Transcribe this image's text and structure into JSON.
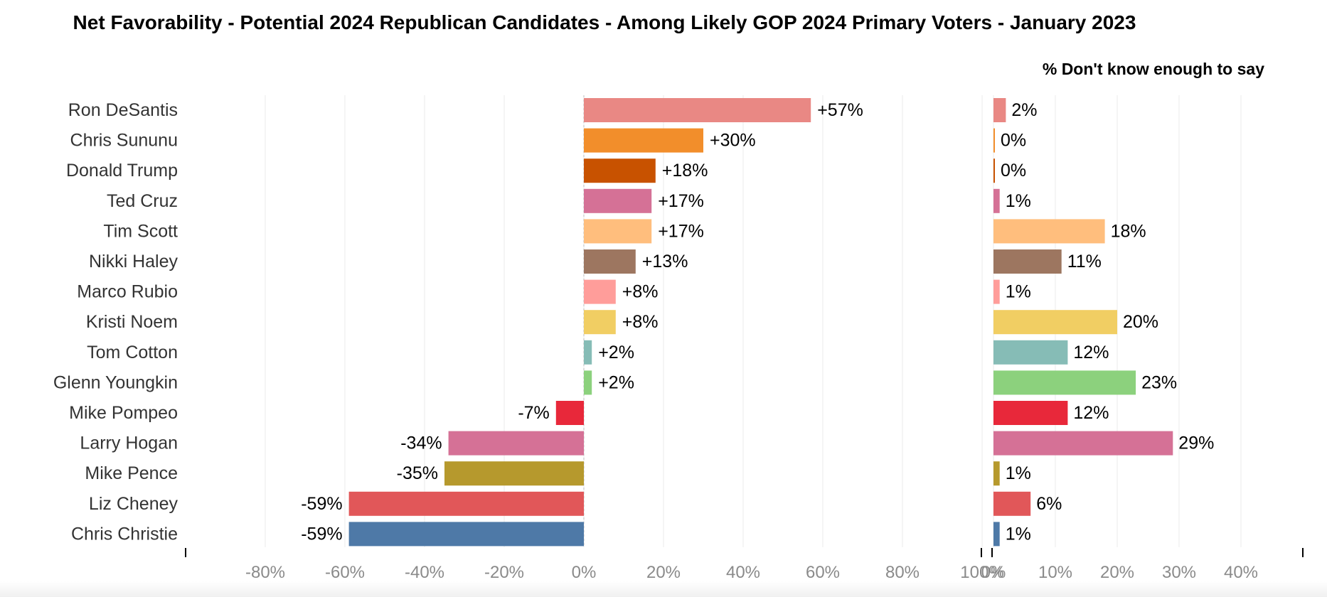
{
  "title": "Net Favorability - Potential 2024 Republican Candidates - Among Likely GOP 2024 Primary Voters - January 2023",
  "subtitle": "% Don't know enough to say",
  "chart_data": [
    {
      "type": "bar",
      "orientation": "horizontal",
      "title": "",
      "xlabel": "",
      "ylabel": "",
      "xlim": [
        -100,
        100
      ],
      "x_ticks": [
        "-80%",
        "-60%",
        "-40%",
        "-20%",
        "0%",
        "20%",
        "40%",
        "60%",
        "80%",
        "100%"
      ],
      "x_tick_values": [
        -80,
        -60,
        -40,
        -20,
        0,
        20,
        40,
        60,
        80,
        100
      ],
      "grid": true,
      "categories": [
        "Ron DeSantis",
        "Chris Sununu",
        "Donald Trump",
        "Ted Cruz",
        "Tim Scott",
        "Nikki Haley",
        "Marco Rubio",
        "Kristi Noem",
        "Tom Cotton",
        "Glenn Youngkin",
        "Mike Pompeo",
        "Larry Hogan",
        "Mike Pence",
        "Liz Cheney",
        "Chris Christie"
      ],
      "values": [
        57,
        30,
        18,
        17,
        17,
        13,
        8,
        8,
        2,
        2,
        -7,
        -34,
        -35,
        -59,
        -59
      ],
      "labels": [
        "+57%",
        "+30%",
        "+18%",
        "+17%",
        "+17%",
        "+13%",
        "+8%",
        "+8%",
        "+2%",
        "+2%",
        "-7%",
        "-34%",
        "-35%",
        "-59%",
        "-59%"
      ],
      "colors": [
        "#e98884",
        "#f28e2b",
        "#c85200",
        "#d57196",
        "#ffbe7d",
        "#9d7660",
        "#ff9d9a",
        "#f1ce63",
        "#86bcb6",
        "#8cd17d",
        "#e8283a",
        "#d57196",
        "#b6992d",
        "#e15759",
        "#4e79a7"
      ]
    },
    {
      "type": "bar",
      "orientation": "horizontal",
      "title": "% Don't know enough to say",
      "xlim": [
        0,
        50
      ],
      "x_ticks": [
        "0%",
        "10%",
        "20%",
        "30%",
        "40%"
      ],
      "x_tick_values": [
        0,
        10,
        20,
        30,
        40
      ],
      "grid": true,
      "categories": [
        "Ron DeSantis",
        "Chris Sununu",
        "Donald Trump",
        "Ted Cruz",
        "Tim Scott",
        "Nikki Haley",
        "Marco Rubio",
        "Kristi Noem",
        "Tom Cotton",
        "Glenn Youngkin",
        "Mike Pompeo",
        "Larry Hogan",
        "Mike Pence",
        "Liz Cheney",
        "Chris Christie"
      ],
      "values": [
        2,
        0,
        0,
        1,
        18,
        11,
        1,
        20,
        12,
        23,
        12,
        29,
        1,
        6,
        1
      ],
      "labels": [
        "2%",
        "0%",
        "0%",
        "1%",
        "18%",
        "11%",
        "1%",
        "20%",
        "12%",
        "23%",
        "12%",
        "29%",
        "1%",
        "6%",
        "1%"
      ],
      "colors": [
        "#e98884",
        "#f28e2b",
        "#c85200",
        "#d57196",
        "#ffbe7d",
        "#9d7660",
        "#ff9d9a",
        "#f1ce63",
        "#86bcb6",
        "#8cd17d",
        "#e8283a",
        "#d57196",
        "#b6992d",
        "#e15759",
        "#4e79a7"
      ]
    }
  ]
}
